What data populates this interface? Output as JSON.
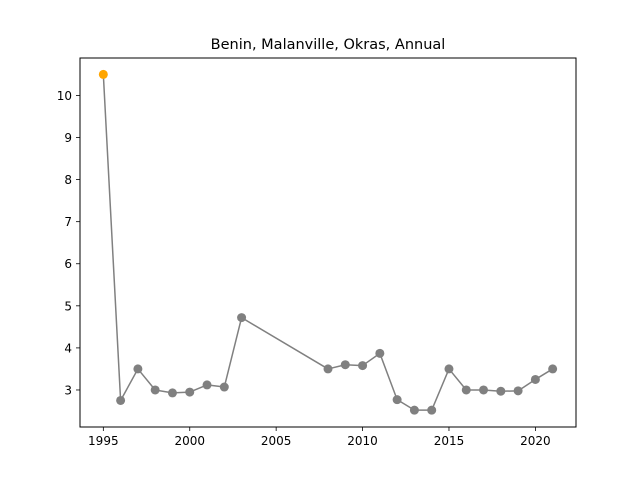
{
  "chart_data": {
    "type": "line",
    "title": "Benin, Malanville, Okras, Annual",
    "xlabel": "",
    "ylabel": "",
    "xlim": [
      1993.65,
      2022.35
    ],
    "ylim": [
      2.12,
      10.89
    ],
    "xticks": [
      1995,
      2000,
      2005,
      2010,
      2015,
      2020
    ],
    "yticks": [
      3,
      4,
      5,
      6,
      7,
      8,
      9,
      10
    ],
    "grid": false,
    "legend": "none",
    "line_color": "#808080",
    "highlight_color": "#FFA500",
    "x": [
      1995,
      1996,
      1997,
      1998,
      1999,
      2000,
      2001,
      2002,
      2003,
      2008,
      2009,
      2010,
      2011,
      2012,
      2013,
      2014,
      2015,
      2016,
      2017,
      2018,
      2019,
      2020,
      2021
    ],
    "y": [
      10.5,
      2.75,
      3.5,
      3.0,
      2.93,
      2.95,
      3.12,
      3.07,
      4.72,
      3.5,
      3.6,
      3.58,
      3.87,
      2.77,
      2.52,
      2.52,
      3.5,
      3.0,
      3.0,
      2.97,
      2.98,
      3.25,
      3.5
    ],
    "highlight_points": [
      0
    ]
  }
}
